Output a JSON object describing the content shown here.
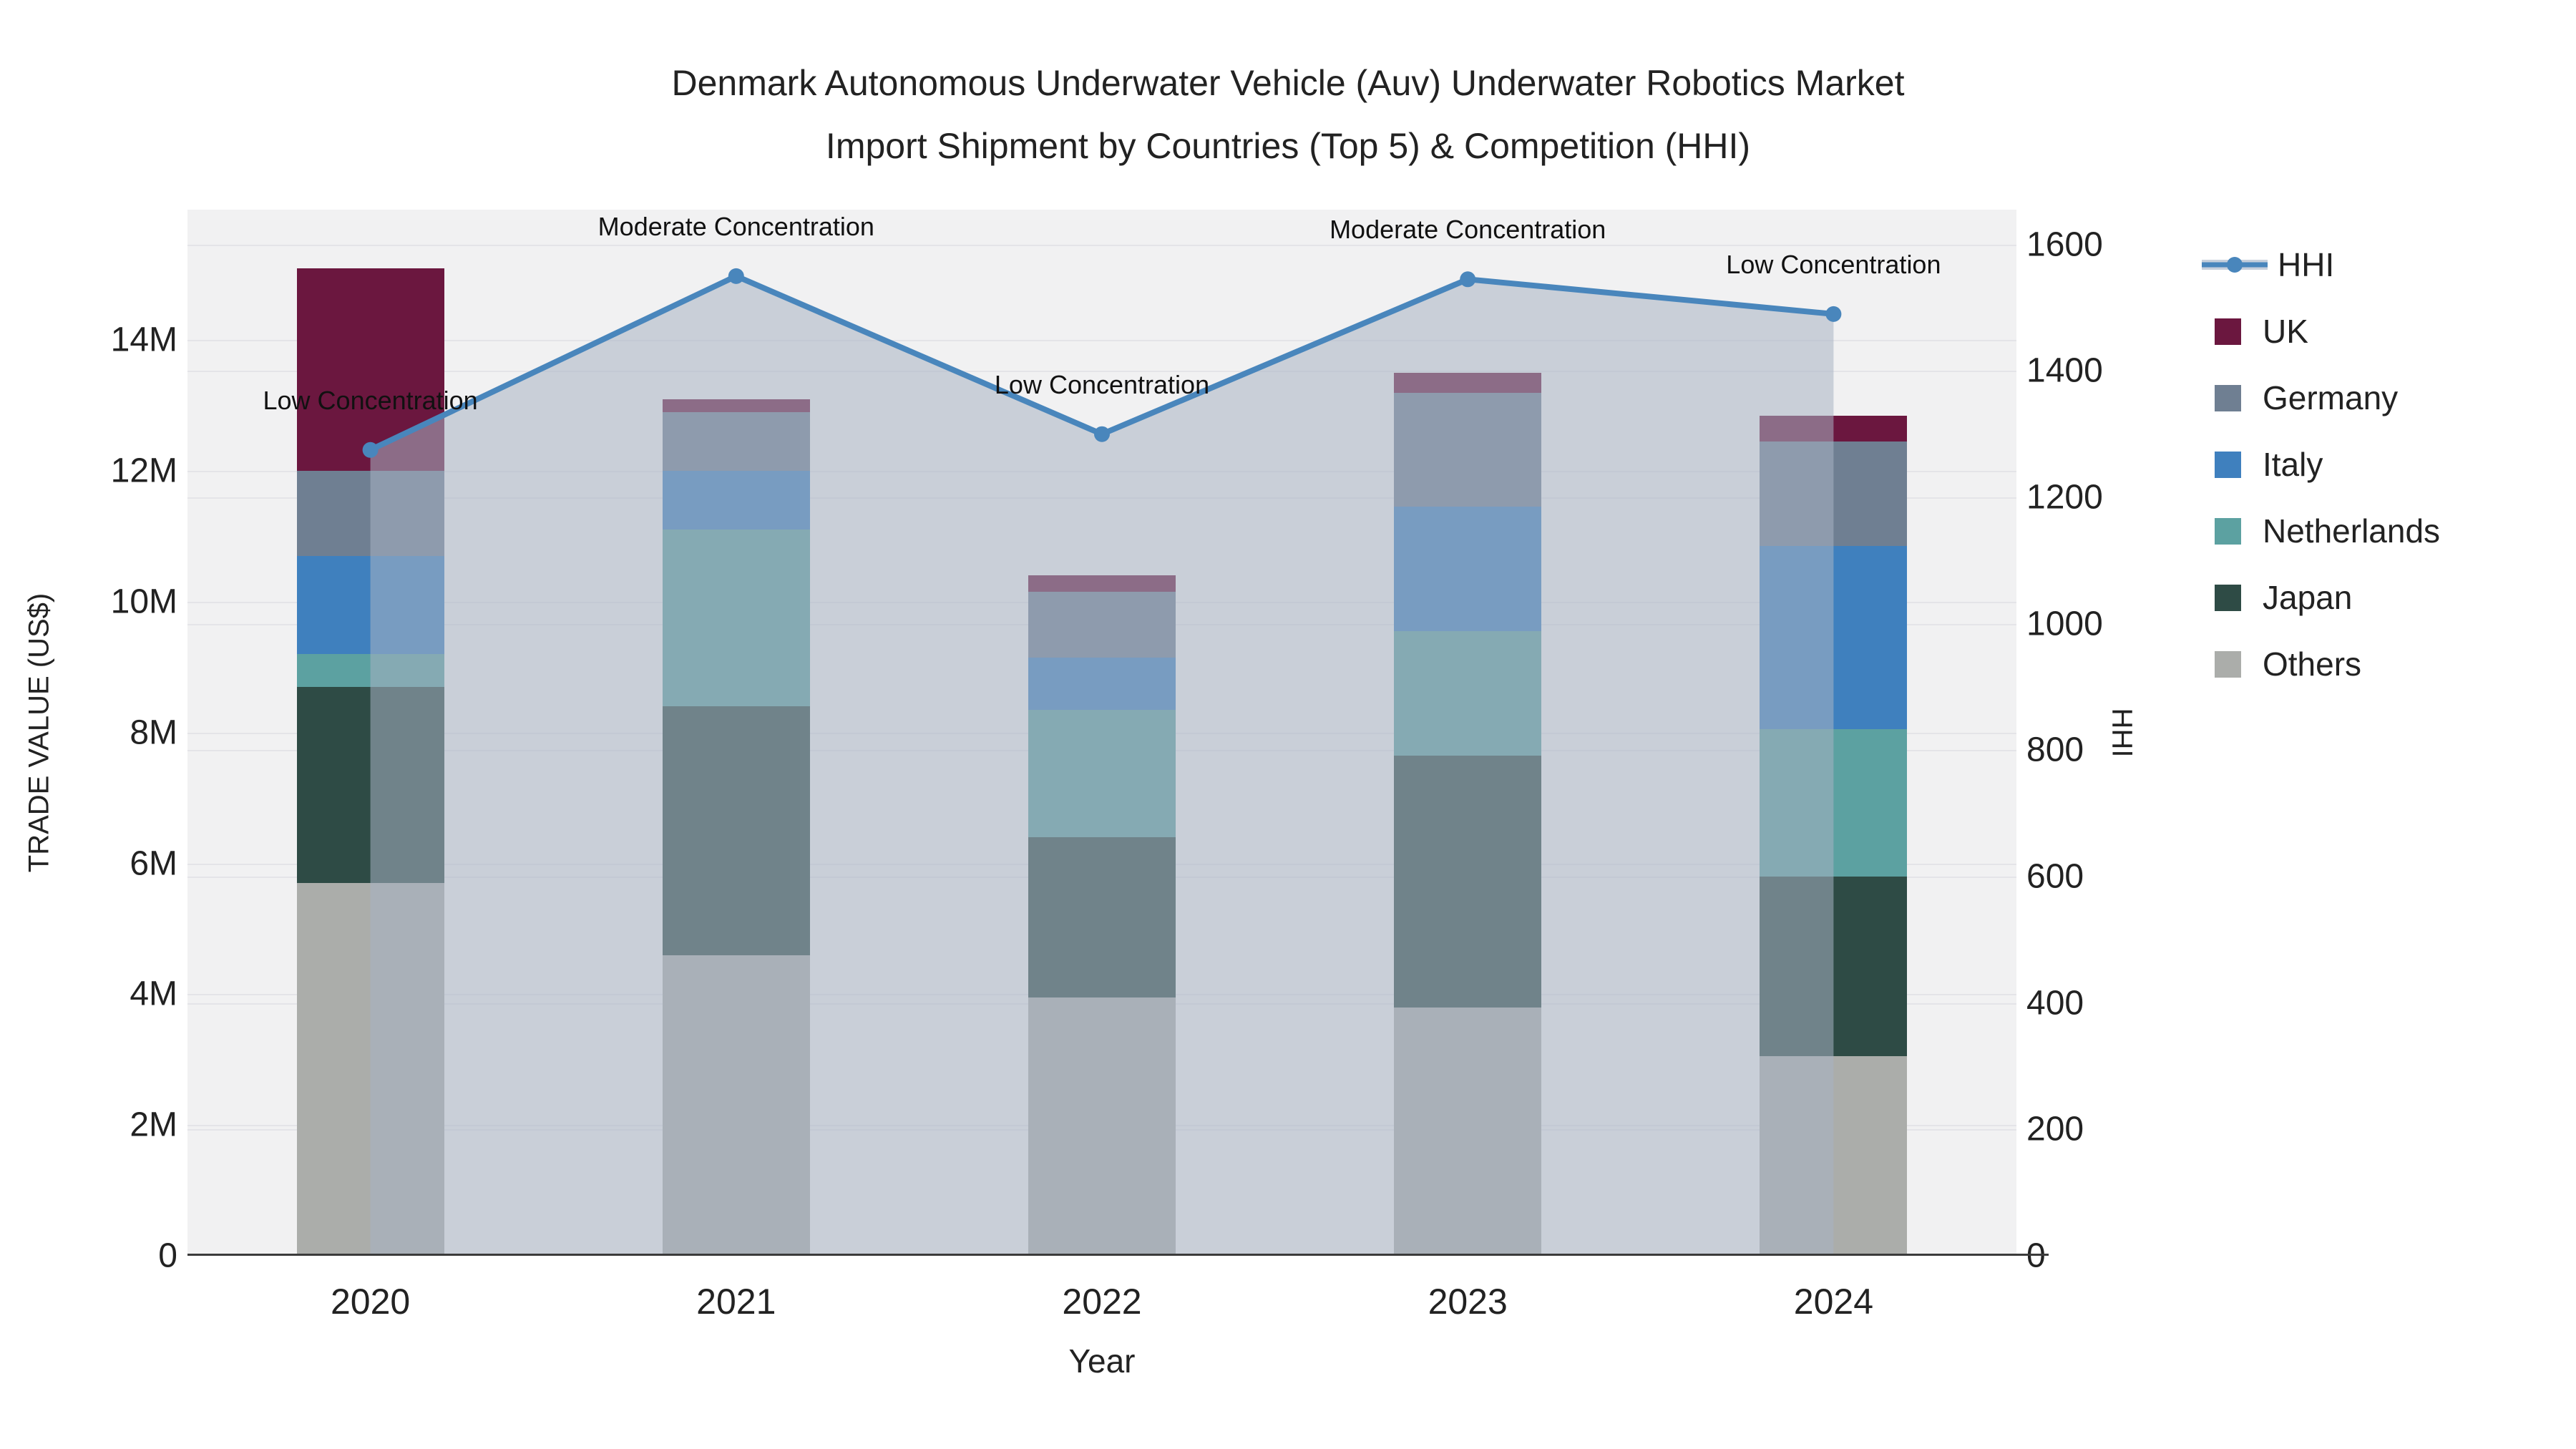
{
  "title": {
    "line1": "Denmark Autonomous Underwater Vehicle (Auv) Underwater Robotics Market",
    "line2": "Import Shipment by Countries (Top 5) & Competition (HHI)"
  },
  "axes": {
    "x_title": "Year",
    "y_left_title": "TRADE VALUE (US$)",
    "y_right_title": "HHI",
    "y_left_ticks": [
      {
        "v": 0,
        "label": "0"
      },
      {
        "v": 2,
        "label": "2M"
      },
      {
        "v": 4,
        "label": "4M"
      },
      {
        "v": 6,
        "label": "6M"
      },
      {
        "v": 8,
        "label": "8M"
      },
      {
        "v": 10,
        "label": "10M"
      },
      {
        "v": 12,
        "label": "12M"
      },
      {
        "v": 14,
        "label": "14M"
      }
    ],
    "y_right_ticks": [
      {
        "v": 0,
        "label": "0"
      },
      {
        "v": 200,
        "label": "200"
      },
      {
        "v": 400,
        "label": "400"
      },
      {
        "v": 600,
        "label": "600"
      },
      {
        "v": 800,
        "label": "800"
      },
      {
        "v": 1000,
        "label": "1000"
      },
      {
        "v": 1200,
        "label": "1200"
      },
      {
        "v": 1400,
        "label": "1400"
      },
      {
        "v": 1600,
        "label": "1600"
      }
    ]
  },
  "legend": [
    {
      "label": "HHI",
      "type": "line",
      "color": "#4986BC",
      "band": "#C7CFDB"
    },
    {
      "label": "UK",
      "type": "square",
      "color": "#6B173F"
    },
    {
      "label": "Germany",
      "type": "square",
      "color": "#6F7F92"
    },
    {
      "label": "Italy",
      "type": "square",
      "color": "#3F80BE"
    },
    {
      "label": "Netherlands",
      "type": "square",
      "color": "#5CA1A1"
    },
    {
      "label": "Japan",
      "type": "square",
      "color": "#2E4B45"
    },
    {
      "label": "Others",
      "type": "square",
      "color": "#ABADAA"
    }
  ],
  "colors": {
    "plot_bg": "#f1f1f2",
    "grid": "#e4e4e8",
    "hhi_line": "#4986BC",
    "hhi_area_fill": "rgba(168,178,195,0.55)",
    "axis_line": "#3b3b3b"
  },
  "chart_data": {
    "type": "bar",
    "subtype": "stacked-bars-with-line-overlay-and-area-fill",
    "title": "Denmark Autonomous Underwater Vehicle (Auv) Underwater Robotics Market Import Shipment by Countries (Top 5) & Competition (HHI)",
    "xlabel": "Year",
    "ylabel": "TRADE VALUE (US$)",
    "ylabel_right": "HHI",
    "categories": [
      "2020",
      "2021",
      "2022",
      "2023",
      "2024"
    ],
    "unit": "millions USD",
    "stack_order_bottom_to_top": [
      "Others",
      "Japan",
      "Netherlands",
      "Italy",
      "Germany",
      "UK"
    ],
    "series": [
      {
        "name": "UK",
        "color": "#6B173F",
        "values": [
          3.1,
          0.2,
          0.25,
          0.3,
          0.4
        ]
      },
      {
        "name": "Germany",
        "color": "#6F7F92",
        "values": [
          1.3,
          0.9,
          1.0,
          1.75,
          1.6
        ]
      },
      {
        "name": "Italy",
        "color": "#3F80BE",
        "values": [
          1.5,
          0.9,
          0.8,
          1.9,
          2.8
        ]
      },
      {
        "name": "Netherlands",
        "color": "#5CA1A1",
        "values": [
          0.5,
          2.7,
          1.95,
          1.9,
          2.25
        ]
      },
      {
        "name": "Japan",
        "color": "#2E4B45",
        "values": [
          3.0,
          3.8,
          2.45,
          3.85,
          2.75
        ]
      },
      {
        "name": "Others",
        "color": "#ABADAA",
        "values": [
          5.7,
          4.6,
          3.95,
          3.8,
          3.05
        ]
      }
    ],
    "bar_totals": [
      15.1,
      13.1,
      10.4,
      13.5,
      12.85
    ],
    "line_series": {
      "name": "HHI",
      "axis": "right",
      "color": "#4986BC",
      "fill_to_zero": true,
      "values": [
        1275,
        1550,
        1300,
        1545,
        1490
      ]
    },
    "annotations": [
      "Low Concentration",
      "Moderate Concentration",
      "Low Concentration",
      "Moderate Concentration",
      "Low Concentration"
    ],
    "ylim_left": [
      0,
      16
    ],
    "ylim_right": [
      0,
      1653
    ],
    "grid": true,
    "legend_position": "right"
  }
}
